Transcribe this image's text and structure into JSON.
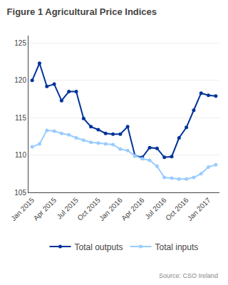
{
  "chart_data": {
    "type": "line",
    "title": "Figure 1 Agricultural Price Indices",
    "annotations": [
      "Source: CSO Ireland"
    ],
    "categories": [
      "Jan 2015",
      null,
      null,
      "Apr 2015",
      null,
      null,
      "Jul 2015",
      null,
      null,
      "Oct 2015",
      null,
      null,
      "Jan 2016",
      null,
      null,
      "Apr 2016",
      null,
      null,
      "Jul 2016",
      null,
      null,
      "Oct 2016",
      null,
      null,
      "Jan 2017",
      null
    ],
    "series": [
      {
        "name": "Total outputs",
        "color": "#003399",
        "values": [
          120.0,
          122.3,
          119.2,
          119.5,
          117.3,
          118.5,
          118.5,
          114.9,
          113.8,
          113.4,
          112.9,
          112.8,
          112.8,
          113.8,
          109.9,
          109.7,
          111.0,
          110.9,
          109.7,
          109.8,
          112.3,
          113.7,
          116.0,
          118.3,
          118.0,
          117.9
        ]
      },
      {
        "name": "Total inputs",
        "color": "#99ccff",
        "values": [
          111.1,
          111.5,
          113.3,
          113.2,
          112.9,
          112.7,
          112.3,
          112.0,
          111.7,
          111.6,
          111.5,
          111.4,
          110.8,
          110.6,
          109.9,
          109.5,
          109.3,
          108.5,
          107.0,
          106.9,
          106.8,
          106.8,
          107.0,
          107.5,
          108.4,
          108.7
        ]
      }
    ],
    "ylim": [
      105,
      126
    ],
    "yticks": [
      105,
      110,
      115,
      120,
      125
    ],
    "grid": true,
    "legend": "bottom",
    "marker": "circle"
  }
}
